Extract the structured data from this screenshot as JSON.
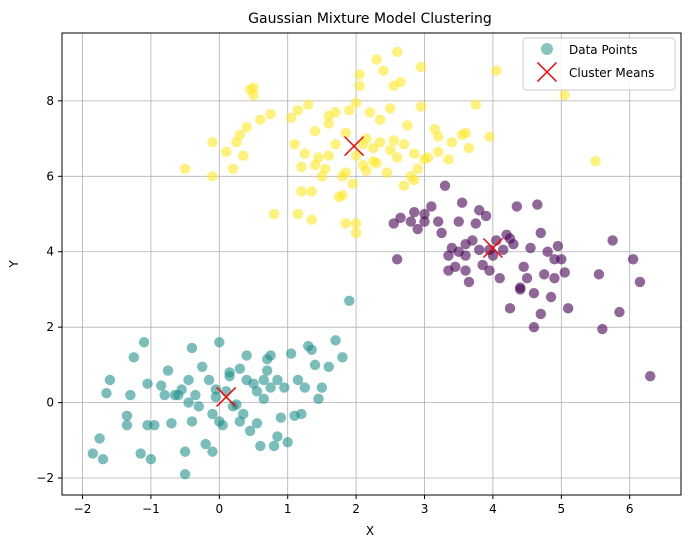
{
  "chart_data": {
    "type": "scatter",
    "title": "Gaussian Mixture Model Clustering",
    "xlabel": "X",
    "ylabel": "Y",
    "xlim": [
      -2.3,
      6.75
    ],
    "ylim": [
      -2.45,
      9.8
    ],
    "xticks": [
      -2,
      -1,
      0,
      1,
      2,
      3,
      4,
      5,
      6
    ],
    "yticks": [
      -2,
      0,
      2,
      4,
      6,
      8
    ],
    "grid": true,
    "legend_position": "top-right",
    "legend": [
      {
        "label": "Data Points",
        "marker": "circle",
        "color": "#3a9b93"
      },
      {
        "label": "Cluster Means",
        "marker": "x",
        "color": "#ff0000"
      }
    ],
    "cluster_colors": {
      "cluster_0": "#440154",
      "cluster_1": "#21918c",
      "cluster_2": "#fde725",
      "means": "#ff0000"
    },
    "series": [
      {
        "cluster": "cluster_2",
        "color": "#fde725",
        "points": [
          [
            -0.5,
            6.2
          ],
          [
            -0.1,
            6.0
          ],
          [
            -0.1,
            6.9
          ],
          [
            0.1,
            6.65
          ],
          [
            0.25,
            6.9
          ],
          [
            0.35,
            6.55
          ],
          [
            0.3,
            7.1
          ],
          [
            0.4,
            7.3
          ],
          [
            0.45,
            8.3
          ],
          [
            0.5,
            8.35
          ],
          [
            0.5,
            8.15
          ],
          [
            0.6,
            7.5
          ],
          [
            0.75,
            7.65
          ],
          [
            0.8,
            5.0
          ],
          [
            1.1,
            6.85
          ],
          [
            1.05,
            7.55
          ],
          [
            1.15,
            7.75
          ],
          [
            1.3,
            7.9
          ],
          [
            1.25,
            6.6
          ],
          [
            1.2,
            5.6
          ],
          [
            1.15,
            5.0
          ],
          [
            1.35,
            4.85
          ],
          [
            1.35,
            5.6
          ],
          [
            1.4,
            6.3
          ],
          [
            1.45,
            6.5
          ],
          [
            1.4,
            7.2
          ],
          [
            1.5,
            6.0
          ],
          [
            1.55,
            6.2
          ],
          [
            1.6,
            6.55
          ],
          [
            1.6,
            7.6
          ],
          [
            1.6,
            7.4
          ],
          [
            1.7,
            7.7
          ],
          [
            1.75,
            5.45
          ],
          [
            1.8,
            5.5
          ],
          [
            1.8,
            6.0
          ],
          [
            1.85,
            6.1
          ],
          [
            1.85,
            7.15
          ],
          [
            1.9,
            7.75
          ],
          [
            1.95,
            5.8
          ],
          [
            2.0,
            6.55
          ],
          [
            2.0,
            7.95
          ],
          [
            2.05,
            8.4
          ],
          [
            2.05,
            8.7
          ],
          [
            2.1,
            6.85
          ],
          [
            2.15,
            6.15
          ],
          [
            2.15,
            7.0
          ],
          [
            2.2,
            7.7
          ],
          [
            2.25,
            6.4
          ],
          [
            2.3,
            6.35
          ],
          [
            2.35,
            6.9
          ],
          [
            2.35,
            7.5
          ],
          [
            2.4,
            8.8
          ],
          [
            2.45,
            6.1
          ],
          [
            2.5,
            6.7
          ],
          [
            2.5,
            7.8
          ],
          [
            2.55,
            6.95
          ],
          [
            2.6,
            6.5
          ],
          [
            2.65,
            8.5
          ],
          [
            2.7,
            6.85
          ],
          [
            2.75,
            7.35
          ],
          [
            2.8,
            6.0
          ],
          [
            2.85,
            5.9
          ],
          [
            2.85,
            6.6
          ],
          [
            2.9,
            6.2
          ],
          [
            2.95,
            7.85
          ],
          [
            3.0,
            6.45
          ],
          [
            3.05,
            6.5
          ],
          [
            3.15,
            7.25
          ],
          [
            3.2,
            7.05
          ],
          [
            3.2,
            6.65
          ],
          [
            3.4,
            6.9
          ],
          [
            3.55,
            7.1
          ],
          [
            3.6,
            7.15
          ],
          [
            3.65,
            6.75
          ],
          [
            3.75,
            7.9
          ],
          [
            3.95,
            7.05
          ],
          [
            4.05,
            8.8
          ],
          [
            5.05,
            8.15
          ],
          [
            5.5,
            6.4
          ],
          [
            2.6,
            9.3
          ],
          [
            2.3,
            9.1
          ],
          [
            2.95,
            8.9
          ],
          [
            2.0,
            4.75
          ],
          [
            1.85,
            4.75
          ],
          [
            2.0,
            4.5
          ],
          [
            2.1,
            6.3
          ],
          [
            1.2,
            6.25
          ],
          [
            1.7,
            6.85
          ],
          [
            2.25,
            6.75
          ],
          [
            0.2,
            6.2
          ],
          [
            2.55,
            8.4
          ],
          [
            3.35,
            6.45
          ],
          [
            2.7,
            5.75
          ]
        ]
      },
      {
        "cluster": "cluster_0",
        "color": "#440154",
        "points": [
          [
            2.55,
            4.75
          ],
          [
            2.6,
            3.8
          ],
          [
            2.65,
            4.9
          ],
          [
            2.8,
            4.8
          ],
          [
            2.85,
            5.05
          ],
          [
            2.9,
            4.6
          ],
          [
            3.0,
            5.0
          ],
          [
            3.1,
            5.2
          ],
          [
            3.2,
            4.8
          ],
          [
            3.25,
            4.5
          ],
          [
            3.3,
            5.75
          ],
          [
            3.35,
            3.9
          ],
          [
            3.4,
            4.1
          ],
          [
            3.45,
            3.6
          ],
          [
            3.5,
            4.0
          ],
          [
            3.55,
            5.3
          ],
          [
            3.6,
            3.5
          ],
          [
            3.6,
            3.9
          ],
          [
            3.65,
            3.2
          ],
          [
            3.7,
            4.3
          ],
          [
            3.75,
            4.75
          ],
          [
            3.8,
            5.1
          ],
          [
            3.85,
            3.65
          ],
          [
            3.9,
            4.95
          ],
          [
            3.95,
            3.5
          ],
          [
            4.0,
            3.9
          ],
          [
            4.05,
            4.3
          ],
          [
            4.1,
            3.3
          ],
          [
            4.15,
            4.05
          ],
          [
            4.2,
            4.45
          ],
          [
            4.25,
            2.5
          ],
          [
            4.3,
            4.2
          ],
          [
            4.35,
            5.2
          ],
          [
            4.4,
            3.0
          ],
          [
            4.45,
            3.6
          ],
          [
            4.5,
            3.3
          ],
          [
            4.55,
            4.1
          ],
          [
            4.6,
            2.9
          ],
          [
            4.65,
            5.25
          ],
          [
            4.7,
            4.5
          ],
          [
            4.75,
            3.4
          ],
          [
            4.8,
            4.0
          ],
          [
            4.85,
            2.8
          ],
          [
            4.9,
            3.3
          ],
          [
            4.95,
            4.15
          ],
          [
            5.0,
            3.8
          ],
          [
            5.05,
            3.45
          ],
          [
            5.1,
            2.5
          ],
          [
            5.55,
            3.4
          ],
          [
            5.6,
            1.95
          ],
          [
            5.75,
            4.3
          ],
          [
            5.85,
            2.4
          ],
          [
            6.05,
            3.8
          ],
          [
            6.15,
            3.2
          ],
          [
            6.3,
            0.7
          ],
          [
            3.35,
            3.5
          ],
          [
            3.5,
            4.8
          ],
          [
            3.95,
            4.05
          ],
          [
            4.6,
            2.0
          ],
          [
            4.7,
            2.35
          ],
          [
            4.25,
            4.35
          ],
          [
            3.0,
            4.8
          ],
          [
            3.6,
            4.2
          ],
          [
            4.9,
            3.8
          ],
          [
            4.4,
            3.05
          ],
          [
            3.8,
            4.05
          ]
        ]
      },
      {
        "cluster": "cluster_1",
        "color": "#21918c",
        "points": [
          [
            -1.85,
            -1.35
          ],
          [
            -1.75,
            -0.95
          ],
          [
            -1.7,
            -1.5
          ],
          [
            -1.65,
            0.25
          ],
          [
            -1.6,
            0.6
          ],
          [
            -1.35,
            -0.6
          ],
          [
            -1.3,
            0.2
          ],
          [
            -1.25,
            1.2
          ],
          [
            -1.15,
            -1.35
          ],
          [
            -1.1,
            1.6
          ],
          [
            -1.05,
            -0.6
          ],
          [
            -1.05,
            0.5
          ],
          [
            -1.0,
            -1.5
          ],
          [
            -0.95,
            -0.6
          ],
          [
            -0.85,
            0.45
          ],
          [
            -0.8,
            0.2
          ],
          [
            -0.75,
            0.85
          ],
          [
            -0.7,
            -0.55
          ],
          [
            -0.65,
            0.2
          ],
          [
            -0.6,
            0.2
          ],
          [
            -0.55,
            0.35
          ],
          [
            -0.5,
            -1.9
          ],
          [
            -0.45,
            0.6
          ],
          [
            -0.4,
            -0.5
          ],
          [
            -0.35,
            0.2
          ],
          [
            -0.3,
            -0.1
          ],
          [
            -0.2,
            -1.1
          ],
          [
            -0.15,
            0.6
          ],
          [
            -0.1,
            -0.3
          ],
          [
            -0.05,
            0.35
          ],
          [
            0.0,
            -0.5
          ],
          [
            0.0,
            1.6
          ],
          [
            0.05,
            -0.6
          ],
          [
            0.1,
            0.3
          ],
          [
            0.15,
            0.7
          ],
          [
            0.2,
            -0.1
          ],
          [
            0.3,
            0.9
          ],
          [
            0.35,
            -0.3
          ],
          [
            0.4,
            1.25
          ],
          [
            0.45,
            -0.75
          ],
          [
            0.5,
            0.5
          ],
          [
            0.55,
            0.3
          ],
          [
            0.6,
            -1.15
          ],
          [
            0.65,
            0.1
          ],
          [
            0.7,
            0.85
          ],
          [
            0.75,
            1.25
          ],
          [
            0.8,
            -1.15
          ],
          [
            0.85,
            0.6
          ],
          [
            0.9,
            -0.4
          ],
          [
            0.95,
            0.4
          ],
          [
            1.0,
            -1.05
          ],
          [
            1.05,
            1.3
          ],
          [
            1.1,
            -0.35
          ],
          [
            1.15,
            0.6
          ],
          [
            1.25,
            0.4
          ],
          [
            1.3,
            1.5
          ],
          [
            1.4,
            1.0
          ],
          [
            1.45,
            0.1
          ],
          [
            1.5,
            0.4
          ],
          [
            1.6,
            0.95
          ],
          [
            1.7,
            1.65
          ],
          [
            1.8,
            1.2
          ],
          [
            1.9,
            2.7
          ],
          [
            -0.4,
            1.45
          ],
          [
            -0.5,
            -1.3
          ],
          [
            -0.1,
            -1.3
          ],
          [
            0.3,
            -0.5
          ],
          [
            0.55,
            -0.55
          ],
          [
            -1.35,
            -0.35
          ],
          [
            -0.45,
            0.0
          ],
          [
            0.65,
            0.6
          ],
          [
            0.7,
            1.15
          ],
          [
            0.4,
            0.6
          ],
          [
            1.35,
            1.4
          ],
          [
            -0.25,
            0.95
          ],
          [
            0.15,
            0.8
          ],
          [
            0.85,
            -0.9
          ],
          [
            0.25,
            -0.05
          ],
          [
            1.2,
            -0.3
          ],
          [
            -0.05,
            0.15
          ],
          [
            0.75,
            0.4
          ]
        ]
      }
    ],
    "means": [
      {
        "x": 0.1,
        "y": 0.15
      },
      {
        "x": 1.97,
        "y": 6.8
      },
      {
        "x": 4.0,
        "y": 4.1
      }
    ]
  }
}
